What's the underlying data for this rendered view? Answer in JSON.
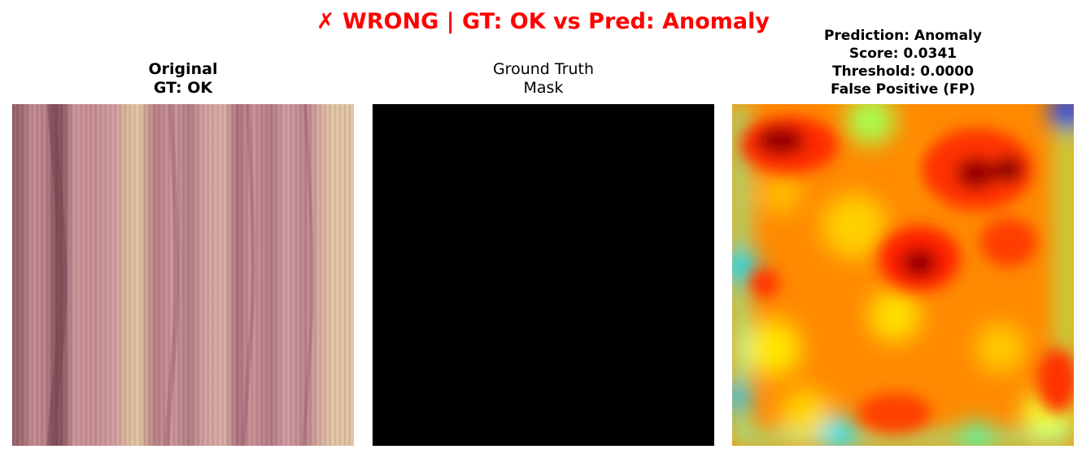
{
  "figure": {
    "suptitle": "✗ WRONG | GT: OK vs Pred: Anomaly",
    "suptitle_color": "#ff0000"
  },
  "panels": [
    {
      "name": "original",
      "title_lines": [
        "Original",
        "GT: OK"
      ],
      "image": "wood texture with vertical pink and dark grain bands"
    },
    {
      "name": "ground-truth-mask",
      "title_lines": [
        "Ground Truth",
        "Mask"
      ],
      "image": "all-black mask"
    },
    {
      "name": "prediction-heatmap",
      "title_lines": [
        "Prediction: Anomaly",
        "Score: 0.0341",
        "Threshold: 0.0000",
        "False Positive (FP)"
      ],
      "image": "jet colormap anomaly heatmap, mostly red/orange/yellow with blue edges"
    }
  ],
  "colors": {
    "wood_light": "#cf9ea0",
    "wood_dark": "#7d4b55",
    "wood_pale": "#e2c8a4",
    "heat_red": "#ff3800",
    "heat_dark": "#8a0000",
    "heat_yellow": "#ffe600",
    "heat_green": "#7dffaa",
    "heat_blue": "#0032ff"
  }
}
